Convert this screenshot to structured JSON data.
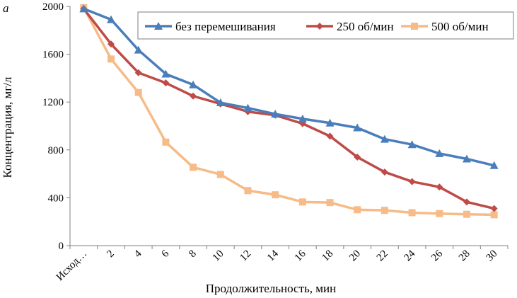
{
  "chart_data": {
    "type": "line",
    "panel_label": "а",
    "title": "",
    "xlabel": "Продолжительность, мин",
    "ylabel": "Концентрация, мг/л",
    "categories": [
      "Исход…",
      "2",
      "4",
      "6",
      "8",
      "10",
      "12",
      "14",
      "16",
      "18",
      "20",
      "22",
      "24",
      "26",
      "28",
      "30"
    ],
    "ylim": [
      0,
      2000
    ],
    "yticks": [
      0,
      400,
      800,
      1200,
      1600,
      2000
    ],
    "grid": false,
    "legend_position": "top-right",
    "series": [
      {
        "name": "без перемешивания",
        "color": "#4a7ebb",
        "marker": "triangle",
        "values": [
          1980,
          1890,
          1635,
          1435,
          1345,
          1195,
          1150,
          1100,
          1060,
          1025,
          985,
          890,
          845,
          770,
          725,
          670
        ]
      },
      {
        "name": "250 об/мин",
        "color": "#be4b48",
        "marker": "diamond",
        "values": [
          1980,
          1685,
          1445,
          1360,
          1250,
          1185,
          1120,
          1090,
          1020,
          915,
          740,
          615,
          535,
          490,
          365,
          310
        ]
      },
      {
        "name": "500 об/мин",
        "color": "#f6bb86",
        "marker": "square",
        "values": [
          1990,
          1560,
          1280,
          865,
          655,
          595,
          460,
          425,
          365,
          360,
          300,
          295,
          275,
          268,
          262,
          258
        ]
      }
    ]
  }
}
